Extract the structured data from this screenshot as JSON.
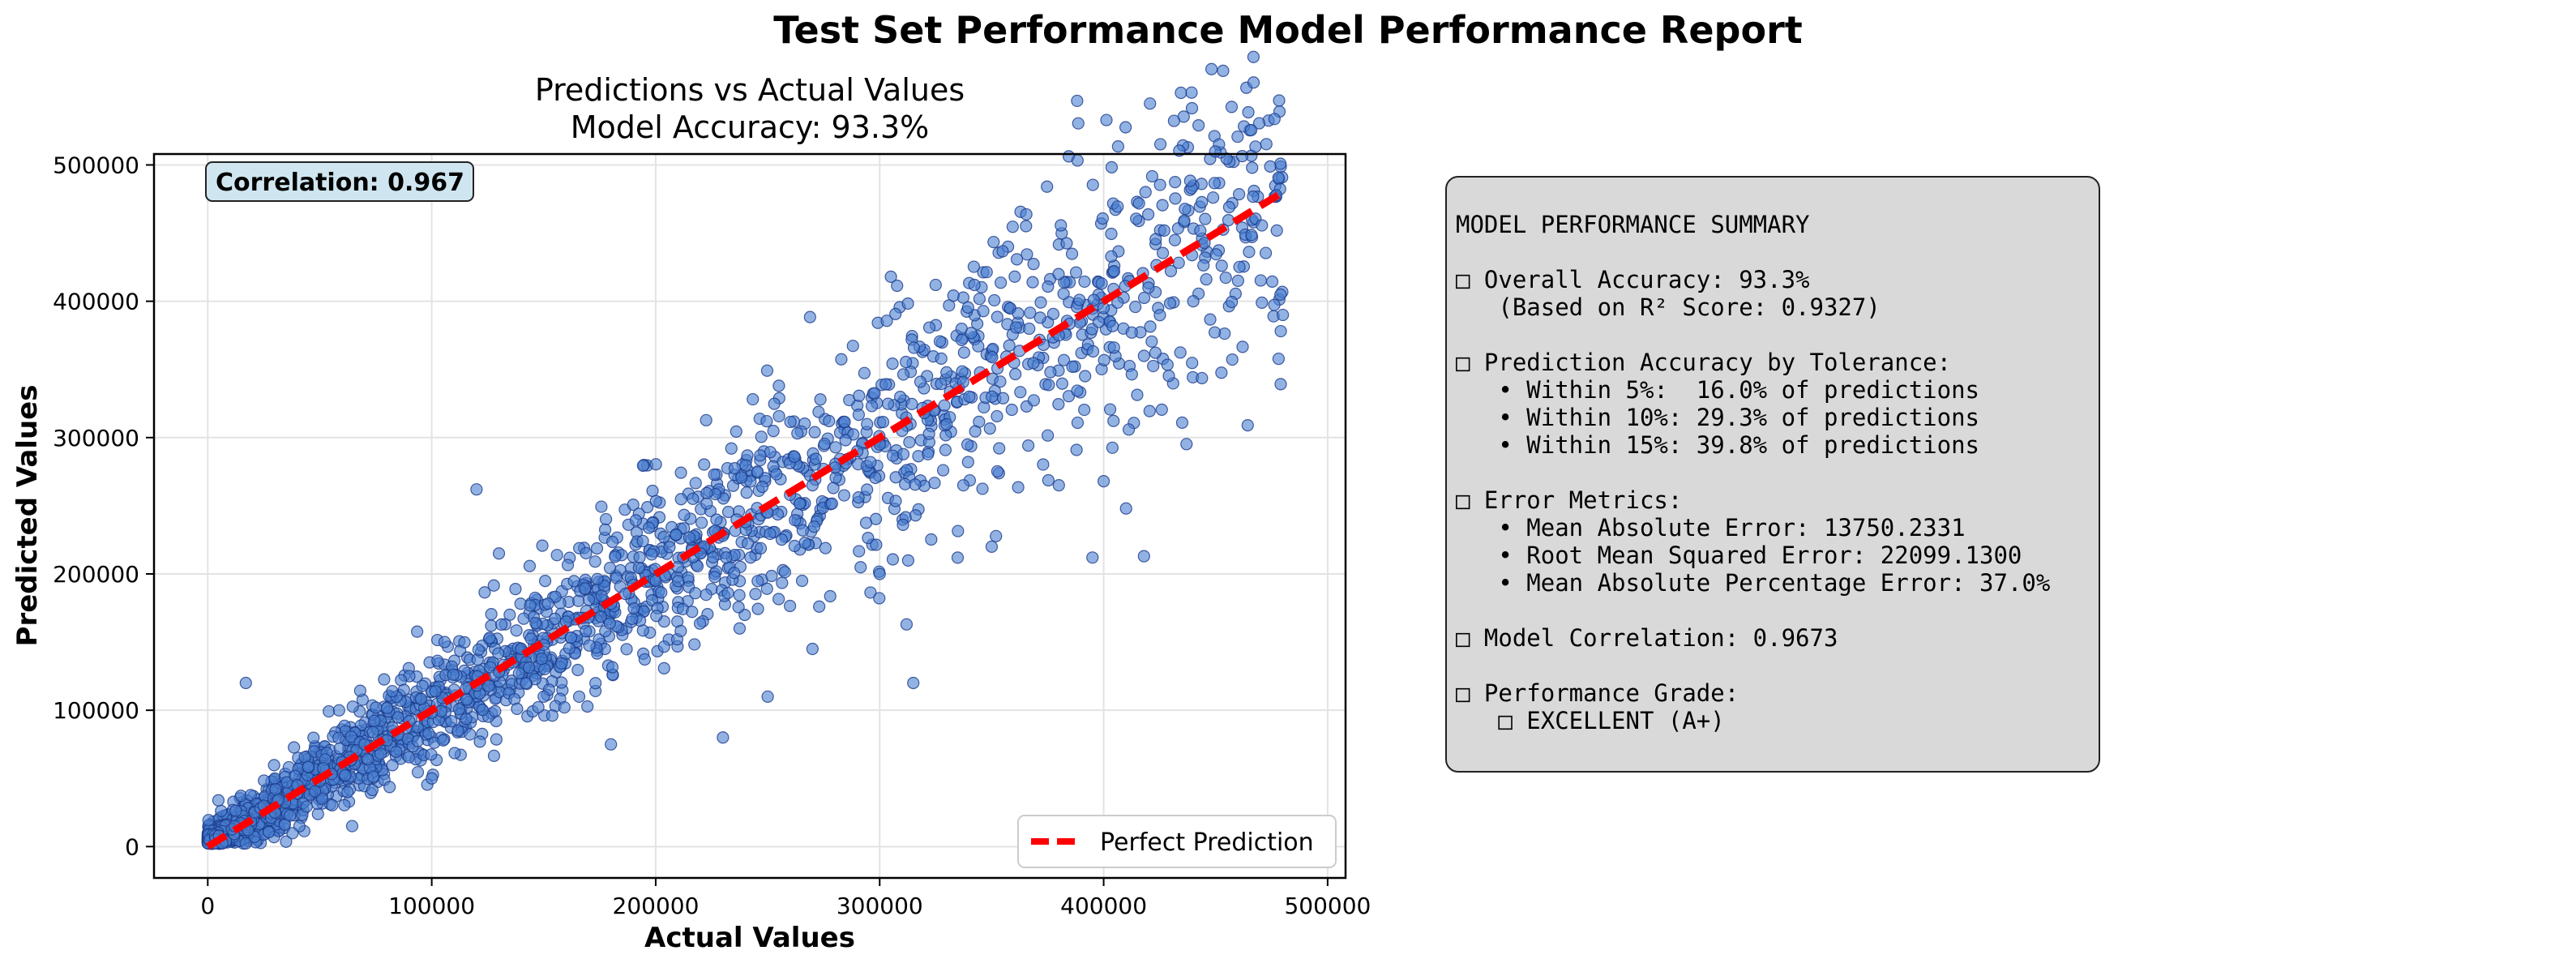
{
  "figure": {
    "suptitle": "Test Set Performance Model Performance Report"
  },
  "chart_data": {
    "type": "scatter",
    "title_line1": "Predictions vs Actual Values",
    "title_line2": "Model Accuracy: 93.3%",
    "xlabel": "Actual Values",
    "ylabel": "Predicted Values",
    "xlim": [
      -24000,
      508000
    ],
    "ylim": [
      -23000,
      508000
    ],
    "xticks": [
      0,
      100000,
      200000,
      300000,
      400000,
      500000
    ],
    "yticks": [
      0,
      100000,
      200000,
      300000,
      400000,
      500000
    ],
    "xtick_labels": [
      "0",
      "100000",
      "200000",
      "300000",
      "400000",
      "500000"
    ],
    "ytick_labels": [
      "0",
      "100000",
      "200000",
      "300000",
      "400000",
      "500000"
    ],
    "grid": true,
    "legend": {
      "location": "lower right",
      "entries": [
        "Perfect Prediction"
      ]
    },
    "annotation": "Correlation: 0.967",
    "colors": {
      "points": "#4a7fd1",
      "point_edge": "#1a3a8a",
      "line": "#ff0000",
      "annotation_bg": "#cfe6f0"
    },
    "series": [
      {
        "name": "Perfect Prediction",
        "kind": "line",
        "style": "dashed",
        "x": [
          0,
          480000
        ],
        "y": [
          0,
          480000
        ]
      },
      {
        "kind": "scatter",
        "x": [
          5000,
          12000,
          18000,
          25000,
          30000,
          40000,
          50000,
          60000,
          70000,
          80000,
          90000,
          100000,
          110000,
          120000,
          130000,
          140000,
          150000,
          160000,
          170000,
          180000,
          190000,
          200000,
          210000,
          220000,
          230000,
          240000,
          250000,
          260000,
          270000,
          280000,
          290000,
          300000,
          310000,
          320000,
          340000,
          360000,
          380000,
          400000,
          420000,
          440000,
          460000,
          480000,
          305000,
          325000,
          120000,
          17000,
          400000,
          410000,
          395000,
          418000,
          315000,
          312000,
          270000,
          130000,
          255000,
          180000,
          230000,
          300000,
          350000,
          380000,
          250000,
          150000,
          100000
        ],
        "y": [
          8000,
          15000,
          12000,
          30000,
          25000,
          45000,
          48000,
          62000,
          75000,
          78000,
          92000,
          98000,
          115000,
          118000,
          128000,
          145000,
          148000,
          165000,
          168000,
          178000,
          192000,
          195000,
          205000,
          215000,
          228000,
          238000,
          245000,
          258000,
          265000,
          278000,
          290000,
          295000,
          305000,
          318000,
          330000,
          355000,
          375000,
          395000,
          410000,
          400000,
          415000,
          390000,
          418000,
          412000,
          262000,
          120000,
          268000,
          248000,
          212000,
          213000,
          120000,
          163000,
          145000,
          215000,
          338000,
          75000,
          80000,
          200000,
          220000,
          265000,
          110000,
          110000,
          50000
        ]
      }
    ]
  },
  "summary": {
    "lines": [
      "MODEL PERFORMANCE SUMMARY",
      "",
      "□ Overall Accuracy: 93.3%",
      "   (Based on R² Score: 0.9327)",
      "",
      "□ Prediction Accuracy by Tolerance:",
      "   • Within 5%:  16.0% of predictions",
      "   • Within 10%: 29.3% of predictions",
      "   • Within 15%: 39.8% of predictions",
      "",
      "□ Error Metrics:",
      "   • Mean Absolute Error: 13750.2331",
      "   • Root Mean Squared Error: 22099.1300",
      "   • Mean Absolute Percentage Error: 37.0%",
      "",
      "□ Model Correlation: 0.9673",
      "",
      "□ Performance Grade:",
      "   □ EXCELLENT (A+)"
    ]
  }
}
